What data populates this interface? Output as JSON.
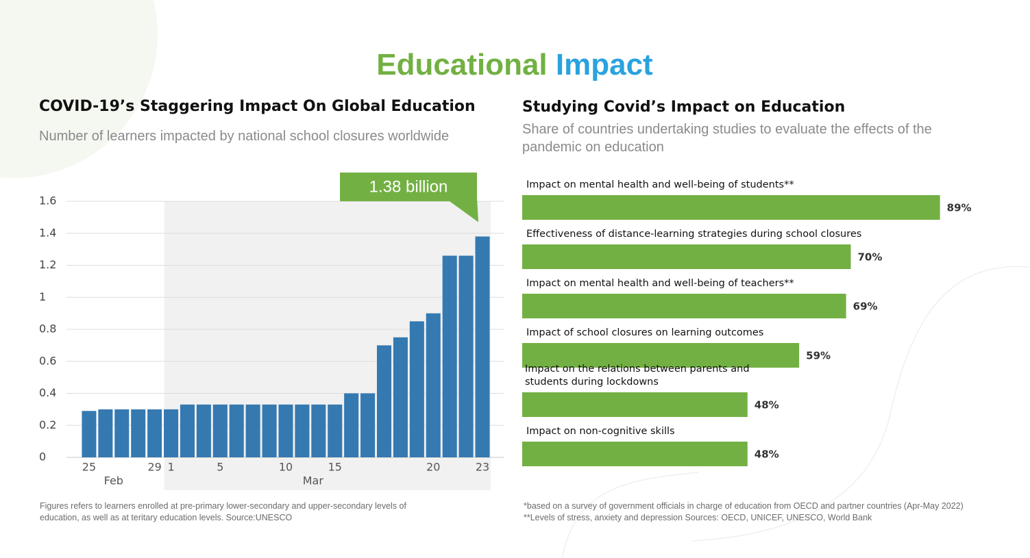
{
  "header": {
    "title": [
      "Educational",
      "Impact"
    ],
    "title_colors": [
      "#72b043",
      "#29a3de"
    ]
  },
  "chart_data": [
    {
      "type": "bar",
      "title": "COVID-19’s Staggering Impact On Global Education",
      "subtitle": "Number of learners impacted by national school closures worldwide",
      "categories": [
        "25",
        null,
        null,
        null,
        "29",
        "1",
        null,
        null,
        "5",
        null,
        null,
        null,
        "10",
        null,
        null,
        "15",
        null,
        null,
        null,
        null,
        null,
        "20",
        null,
        null,
        "23"
      ],
      "groups": [
        {
          "label": "Feb",
          "count": 5
        },
        {
          "label": "Mar",
          "count": 20
        }
      ],
      "values": [
        0.29,
        0.3,
        0.3,
        0.3,
        0.3,
        0.3,
        0.33,
        0.33,
        0.33,
        0.33,
        0.33,
        0.33,
        0.33,
        0.33,
        0.33,
        0.33,
        0.4,
        0.4,
        0.7,
        0.75,
        0.85,
        0.9,
        1.26,
        1.26,
        1.38
      ],
      "color": "#3579b1",
      "ylim": [
        0,
        1.6
      ],
      "yticks": [
        0,
        0.2,
        0.4,
        0.6,
        0.8,
        1,
        1.2,
        1.4,
        1.6
      ],
      "grid": true,
      "annotation": {
        "text": "1.38 billion",
        "color": "#72b043"
      },
      "note": "Figures refers to learners enrolled at pre-primary lower-secondary and upper-secondary levels of education, as well as at teritary education levels. Source:UNESCO"
    },
    {
      "type": "hbar",
      "title": "Studying Covid’s Impact on Education",
      "subtitle": "Share of countries undertaking studies to evaluate the effects of the pandemic on education",
      "categories": [
        "Impact on mental health and well-being of students**",
        "Effectiveness of distance-learning strategies during school closures",
        "Impact on mental health and well-being of teachers**",
        "Impact of school closures on learning outcomes",
        "Impact on the relations between parents and students during lockdowns",
        "Impact on non-cognitive skills"
      ],
      "values": [
        89,
        70,
        69,
        59,
        48,
        48
      ],
      "value_labels": [
        "89%",
        "70%",
        "69%",
        "59%",
        "48%",
        "48%"
      ],
      "color": "#72b043",
      "xlim": [
        0,
        100
      ],
      "note": "*based on a survey of government officials in charge of education from OECD and partner countries (Apr-May 2022) **Levels of stress, anxiety and depression Sources: OECD, UNICEF, UNESCO, World Bank"
    }
  ]
}
